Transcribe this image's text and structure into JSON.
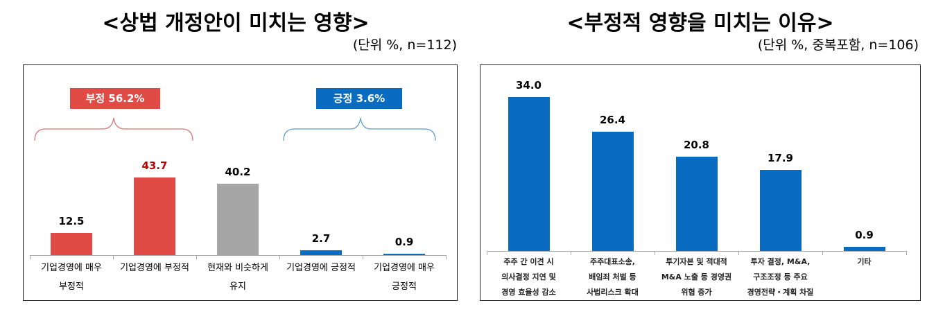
{
  "chart_data": [
    {
      "type": "bar",
      "title": "<상법 개정안이 미치는 영향>",
      "subtitle": "(단위 %, n=112)",
      "categories": [
        "기업경영에 매우\n부정적",
        "기업경영에 부정적",
        "현재와 비슷하게\n유지",
        "기업경영에 긍정적",
        "기업경영에 매우\n긍정적"
      ],
      "values": [
        12.5,
        43.7,
        40.2,
        2.7,
        0.9
      ],
      "labels": [
        "12.5",
        "43.7",
        "40.2",
        "2.7",
        "0.9"
      ],
      "colors": [
        "#e04b46",
        "#e04b46",
        "#a6a6a6",
        "#0a6cc0",
        "#0a6cc0"
      ],
      "label_colors": [
        "#000000",
        "#c00000",
        "#000000",
        "#000000",
        "#000000"
      ],
      "groups": [
        {
          "label": "부정 56.2%",
          "color": "#e04b46"
        },
        {
          "label": "긍정 3.6%",
          "color": "#0a6cc0"
        }
      ],
      "ylim": [
        0,
        50
      ],
      "grid": false
    },
    {
      "type": "bar",
      "title": "<부정적 영향을 미치는 이유>",
      "subtitle": "(단위 %, 중복포함, n=106)",
      "categories": [
        "주주 간 이견 시\n의사결정 지연 및\n경영 효율성 감소",
        "주주대표소송,\n배임죄 처벌 등\n사법리스크 확대",
        "투기자본 및 적대적\nM&A 노출 등 경영권\n위협 증가",
        "투자 결정, M&A,\n구조조정 등 주요\n경영전략・계획 차질",
        "기타"
      ],
      "values": [
        34.0,
        26.4,
        20.8,
        17.9,
        0.9
      ],
      "labels": [
        "34.0",
        "26.4",
        "20.8",
        "17.9",
        "0.9"
      ],
      "color": "#0a6cc0",
      "ylim": [
        0,
        40
      ],
      "grid": false
    }
  ]
}
